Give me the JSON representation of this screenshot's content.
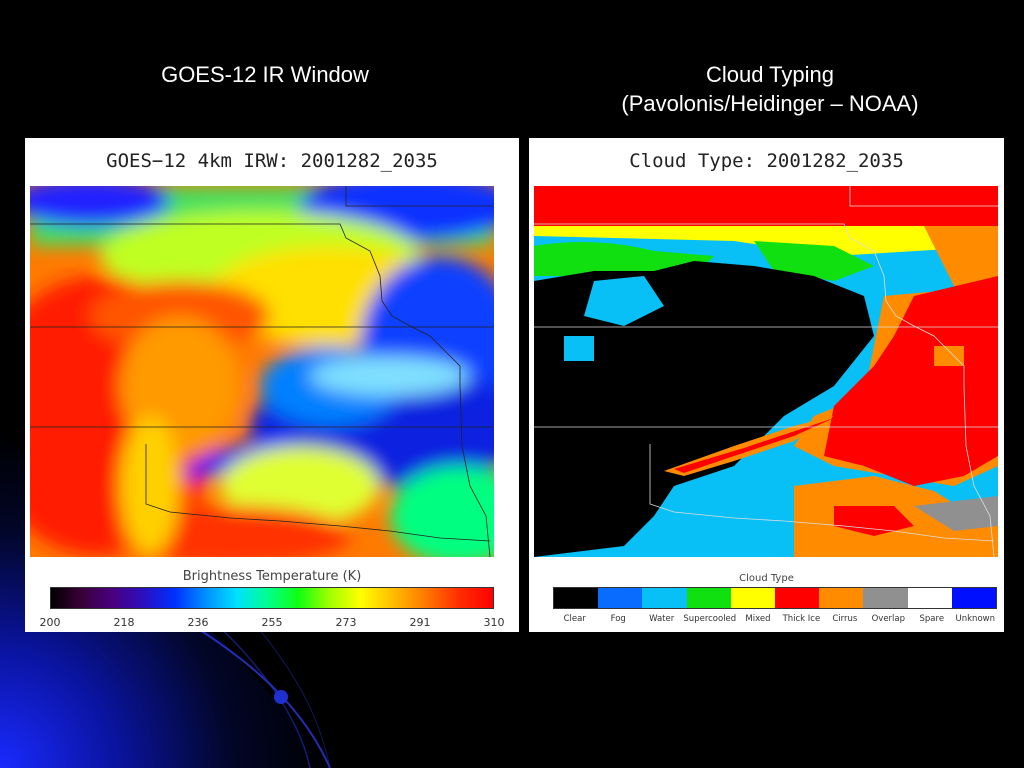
{
  "slide": {
    "left_heading": "GOES-12 IR Window",
    "right_heading_line1": "Cloud Typing",
    "right_heading_line2": "(Pavolonis/Heidinger – NOAA)"
  },
  "ir_panel": {
    "title": "GOES−12 4km IRW: 2001282_2035",
    "legend_title": "Brightness Temperature (K)",
    "ticks": [
      "200",
      "218",
      "236",
      "255",
      "273",
      "291",
      "310"
    ]
  },
  "cloud_panel": {
    "title": "Cloud Type: 2001282_2035",
    "legend_title": "Cloud Type",
    "categories": [
      {
        "label": "Clear",
        "color": "#000000"
      },
      {
        "label": "Fog",
        "color": "#0a6cff"
      },
      {
        "label": "Water",
        "color": "#08c0f5"
      },
      {
        "label": "Supercooled",
        "color": "#10e010"
      },
      {
        "label": "Mixed",
        "color": "#ffff00"
      },
      {
        "label": "Thick Ice",
        "color": "#ff0000"
      },
      {
        "label": "Cirrus",
        "color": "#ff8c00"
      },
      {
        "label": "Overlap",
        "color": "#909090"
      },
      {
        "label": "Spare",
        "color": "#ffffff"
      },
      {
        "label": "Unknown",
        "color": "#0010ff"
      }
    ]
  }
}
